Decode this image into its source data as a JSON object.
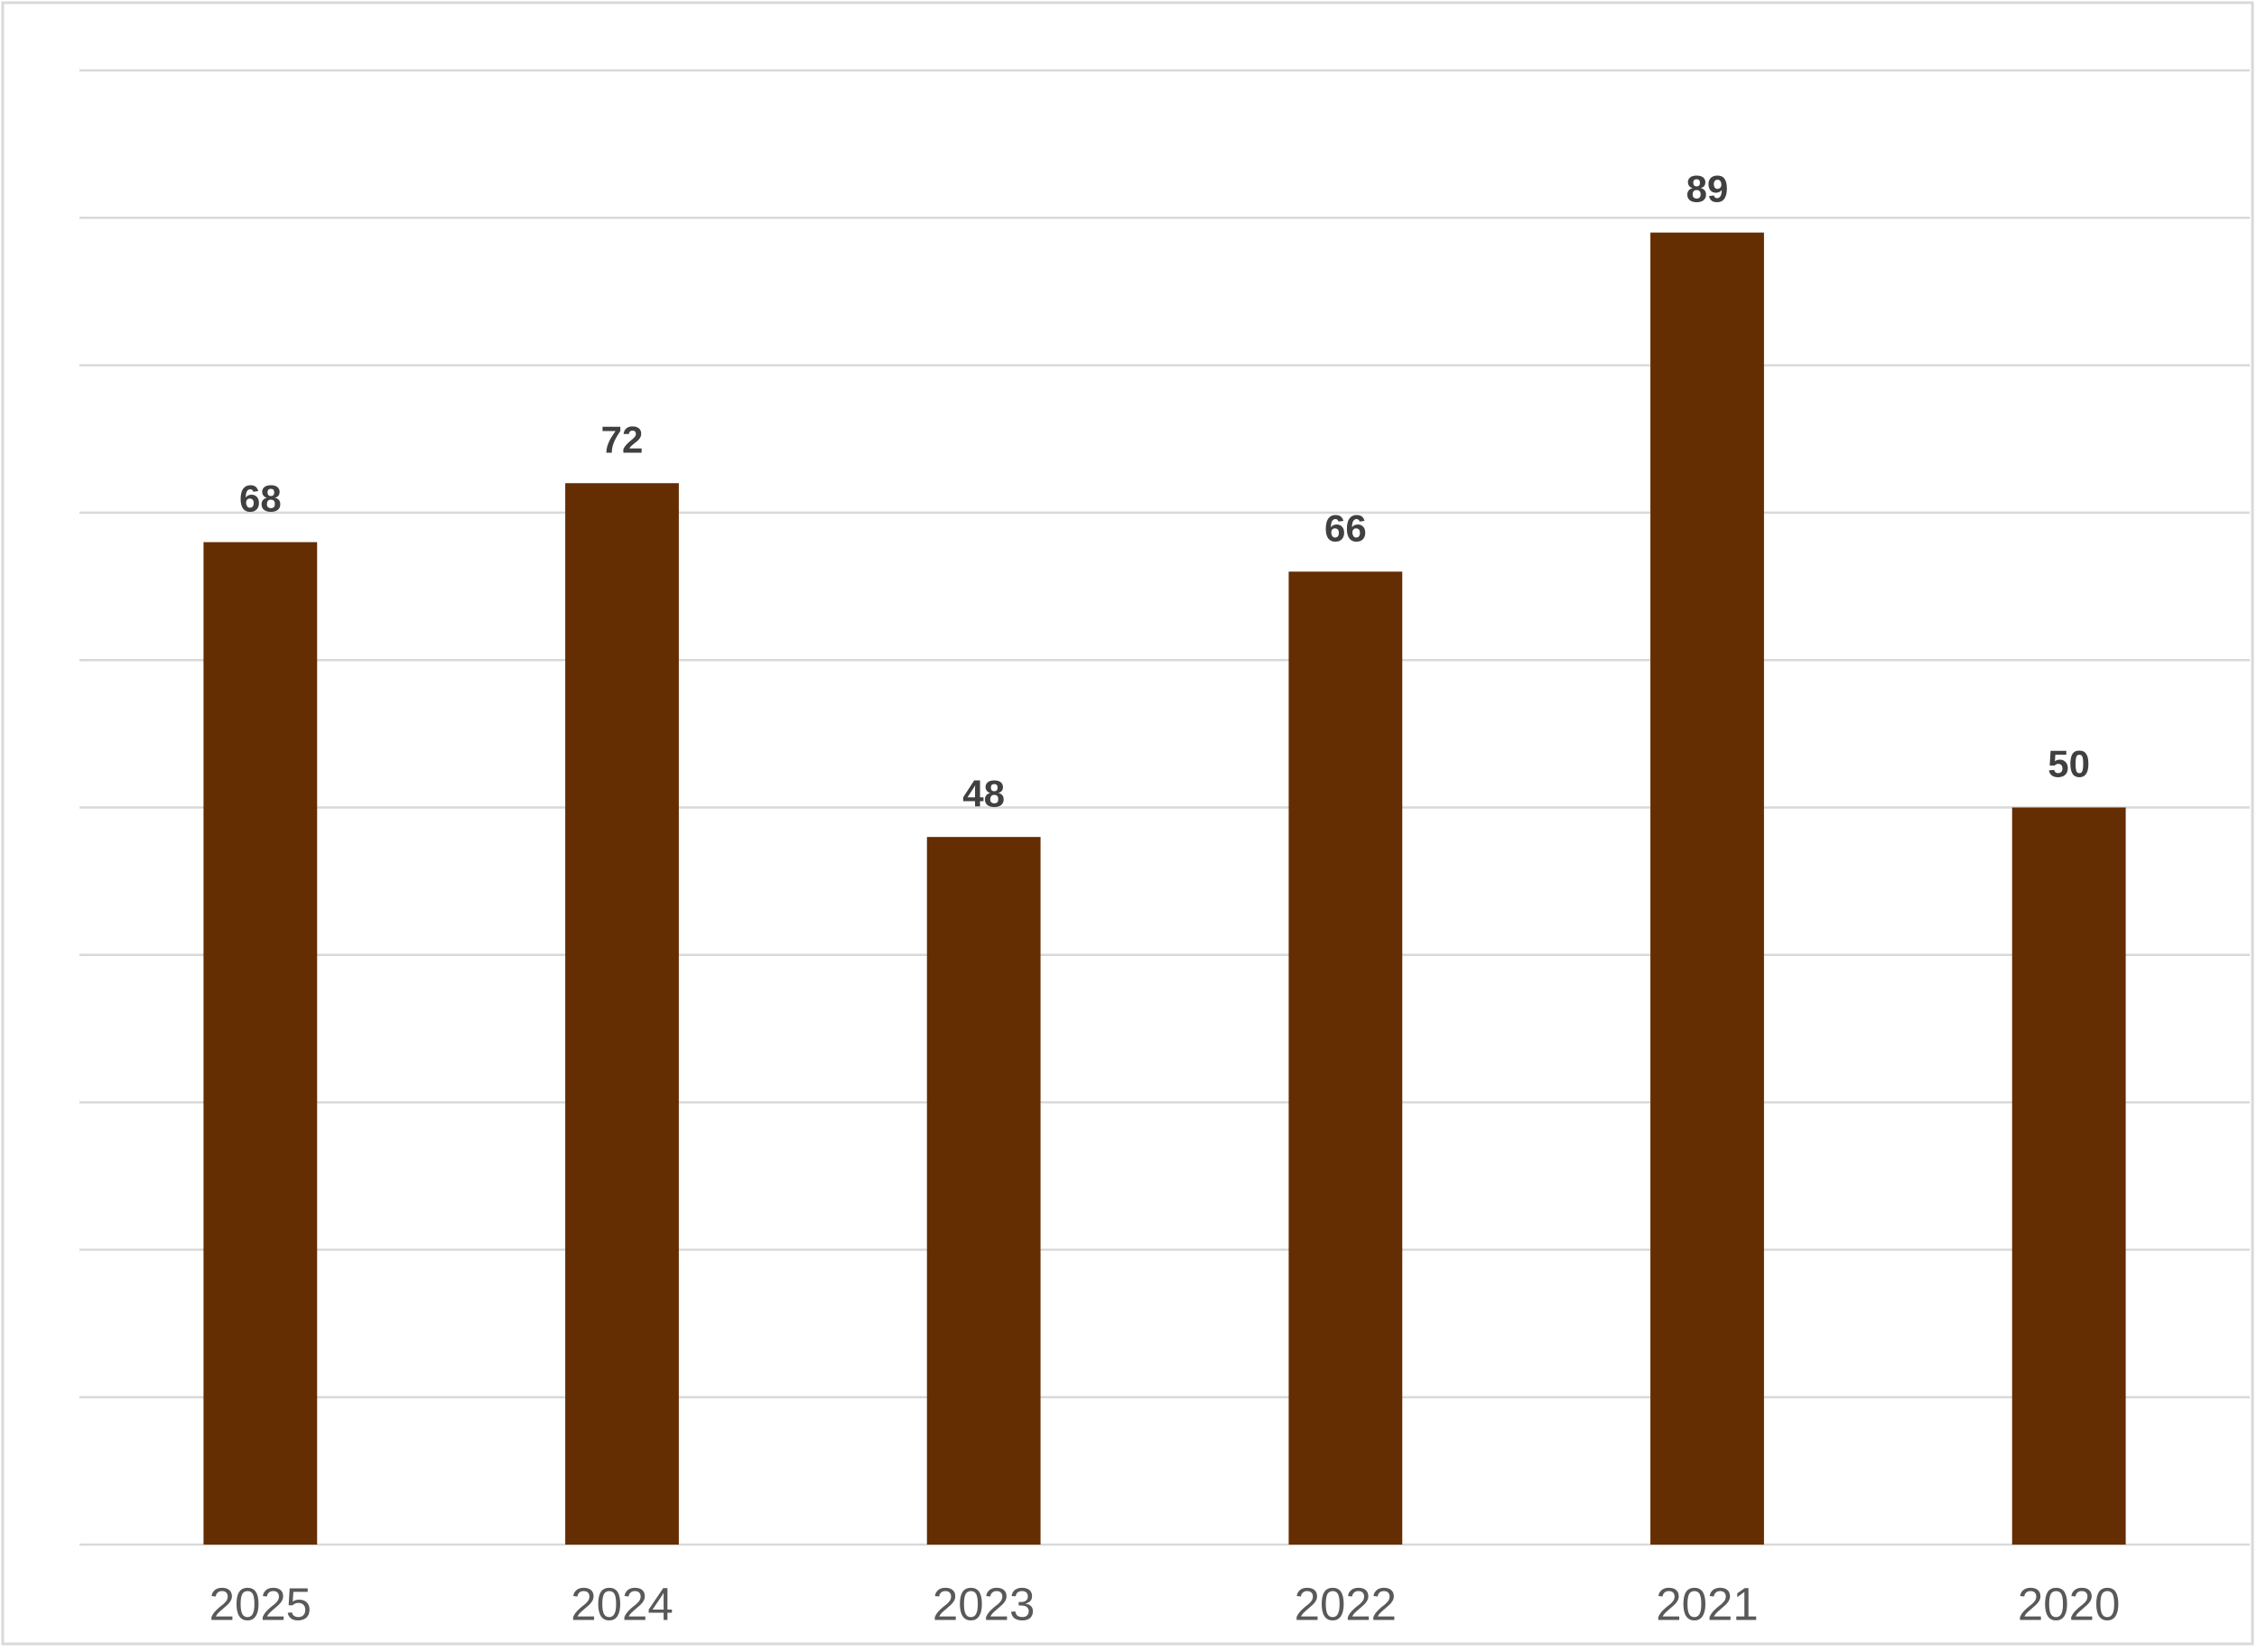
{
  "chart_data": {
    "type": "bar",
    "categories": [
      "2025",
      "2024",
      "2023",
      "2022",
      "2021",
      "2020"
    ],
    "values": [
      68,
      72,
      48,
      66,
      89,
      50
    ],
    "color": "#652d02",
    "ylim": [
      0,
      100
    ],
    "yticks": [
      0,
      10,
      20,
      30,
      40,
      50,
      60,
      70,
      80,
      90,
      100
    ],
    "grid": true
  }
}
